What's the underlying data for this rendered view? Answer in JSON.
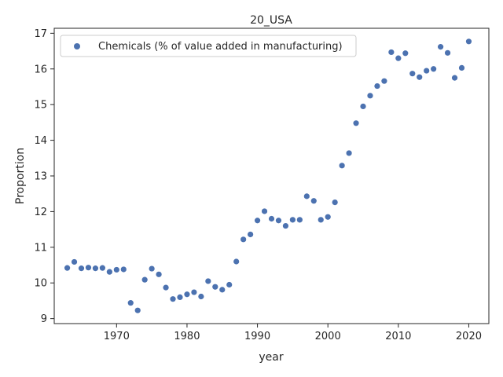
{
  "chart_data": {
    "type": "scatter",
    "title": "20_USA",
    "xlabel": "year",
    "ylabel": "Proportion",
    "xlim": [
      1961.15,
      2022.85
    ],
    "ylim": [
      8.86,
      17.14
    ],
    "xticks": [
      1970,
      1980,
      1990,
      2000,
      2010,
      2020
    ],
    "yticks": [
      9,
      10,
      11,
      12,
      13,
      14,
      15,
      16,
      17
    ],
    "grid": false,
    "legend_position": "top-left",
    "series": [
      {
        "name": "Chemicals (% of value added in manufacturing)",
        "color": "#4c72b0",
        "x": [
          1963,
          1964,
          1965,
          1966,
          1967,
          1968,
          1969,
          1970,
          1971,
          1972,
          1973,
          1974,
          1975,
          1976,
          1977,
          1978,
          1979,
          1980,
          1981,
          1982,
          1983,
          1984,
          1985,
          1986,
          1987,
          1988,
          1989,
          1990,
          1991,
          1992,
          1993,
          1994,
          1995,
          1996,
          1997,
          1998,
          1999,
          2000,
          2001,
          2002,
          2003,
          2004,
          2005,
          2006,
          2007,
          2008,
          2009,
          2010,
          2011,
          2012,
          2013,
          2014,
          2015,
          2016,
          2017,
          2018,
          2019,
          2020
        ],
        "y": [
          10.42,
          10.59,
          10.41,
          10.43,
          10.41,
          10.42,
          10.31,
          10.37,
          10.38,
          9.44,
          9.23,
          10.09,
          10.4,
          10.24,
          9.87,
          9.55,
          9.6,
          9.68,
          9.74,
          9.62,
          10.05,
          9.89,
          9.81,
          9.95,
          10.6,
          11.22,
          11.36,
          11.75,
          12.01,
          11.8,
          11.75,
          11.6,
          11.77,
          11.77,
          12.43,
          12.3,
          11.77,
          11.85,
          12.26,
          13.29,
          13.64,
          14.48,
          14.95,
          15.25,
          15.52,
          15.66,
          16.47,
          16.3,
          16.44,
          15.87,
          15.77,
          15.95,
          16.0,
          16.62,
          16.45,
          15.75,
          16.03,
          16.77
        ]
      }
    ]
  }
}
